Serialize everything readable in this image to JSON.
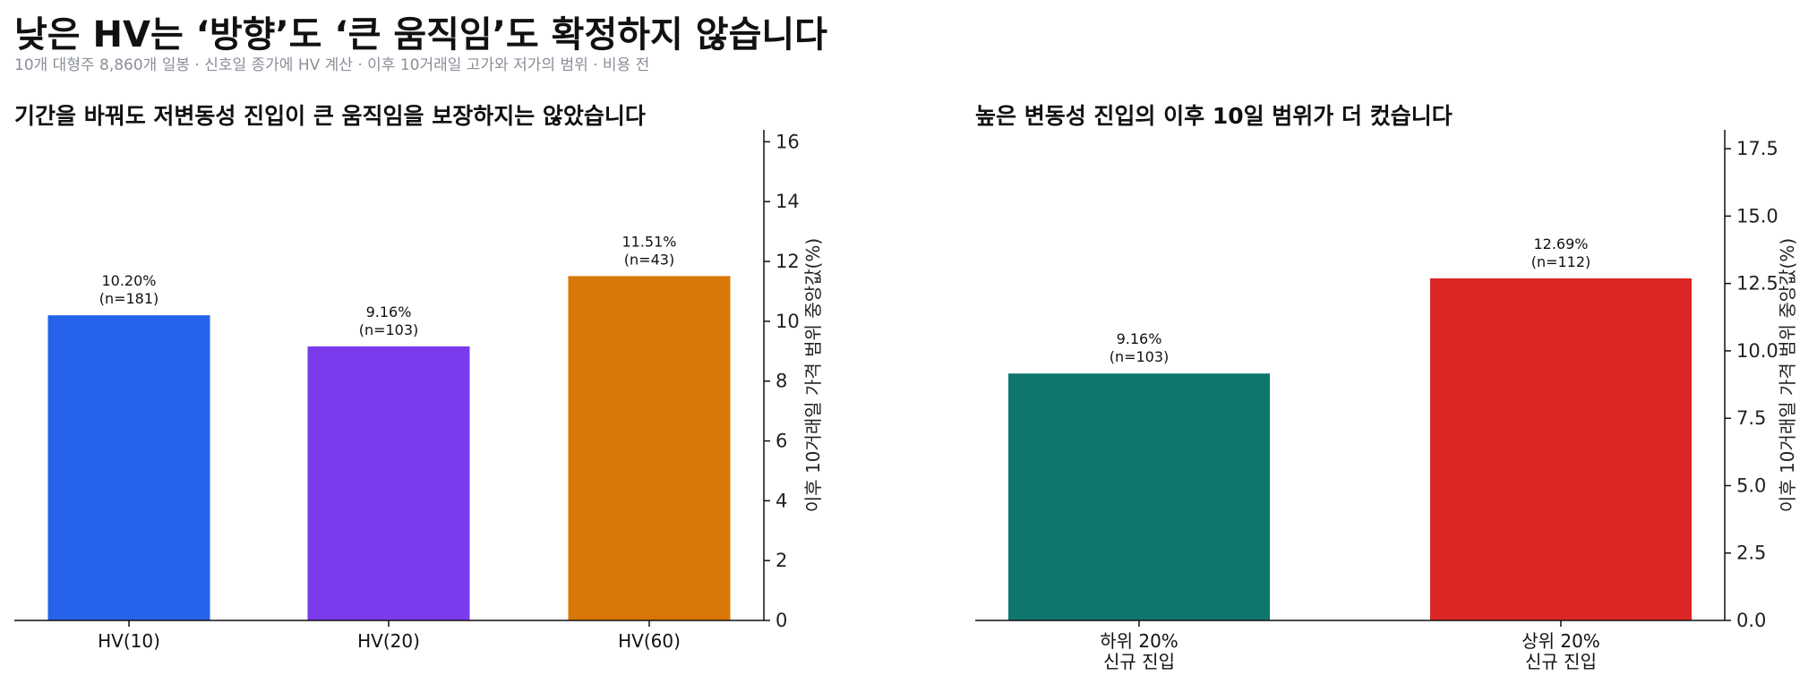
{
  "title": "낮은 HV는 ‘방향’도 ‘큰 움직임’도 확정하지 않습니다",
  "subtitle": "10개 대형주 8,860개 일봉 · 신호일 종가에 HV 계산 · 이후 10거래일 고가와 저가의 범위 · 비용 전",
  "chart_data": [
    {
      "type": "bar",
      "title": "기간을 바꿔도 저변동성 진입이 큰 움직임을 보장하지는 않았습니다",
      "ylabel": "이후 10거래일 가격 범위 중앙값(%)",
      "categories": [
        "HV(10)",
        "HV(20)",
        "HV(60)"
      ],
      "values": [
        10.2,
        9.16,
        11.51
      ],
      "value_labels": [
        "10.20%",
        "9.16%",
        "11.51%"
      ],
      "n_labels": [
        "(n=181)",
        "(n=103)",
        "(n=43)"
      ],
      "colors": [
        "#2563eb",
        "#7c3aed",
        "#d97706"
      ],
      "ylim": [
        0,
        16.4
      ],
      "yticks": [
        0,
        2,
        4,
        6,
        8,
        10,
        12,
        14,
        16
      ],
      "ytick_labels": [
        "0",
        "2",
        "4",
        "6",
        "8",
        "10",
        "12",
        "14",
        "16"
      ],
      "y_axis_side": "right",
      "grid": false
    },
    {
      "type": "bar",
      "title": "높은 변동성 진입의 이후 10일 범위가 더 컸습니다",
      "ylabel": "이후 10거래일 가격 범위 중앙값(%)",
      "categories": [
        [
          "하위 20%",
          "신규 진입"
        ],
        [
          "상위 20%",
          "신규 진입"
        ]
      ],
      "values": [
        9.16,
        12.69
      ],
      "value_labels": [
        "9.16%",
        "12.69%"
      ],
      "n_labels": [
        "(n=103)",
        "(n=112)"
      ],
      "colors": [
        "#0f766e",
        "#dc2626"
      ],
      "ylim": [
        0,
        18.2
      ],
      "yticks": [
        0,
        2.5,
        5,
        7.5,
        10,
        12.5,
        15,
        17.5
      ],
      "ytick_labels": [
        "0.0",
        "2.5",
        "5.0",
        "7.5",
        "10.0",
        "12.5",
        "15.0",
        "17.5"
      ],
      "y_axis_side": "right",
      "grid": false
    }
  ]
}
